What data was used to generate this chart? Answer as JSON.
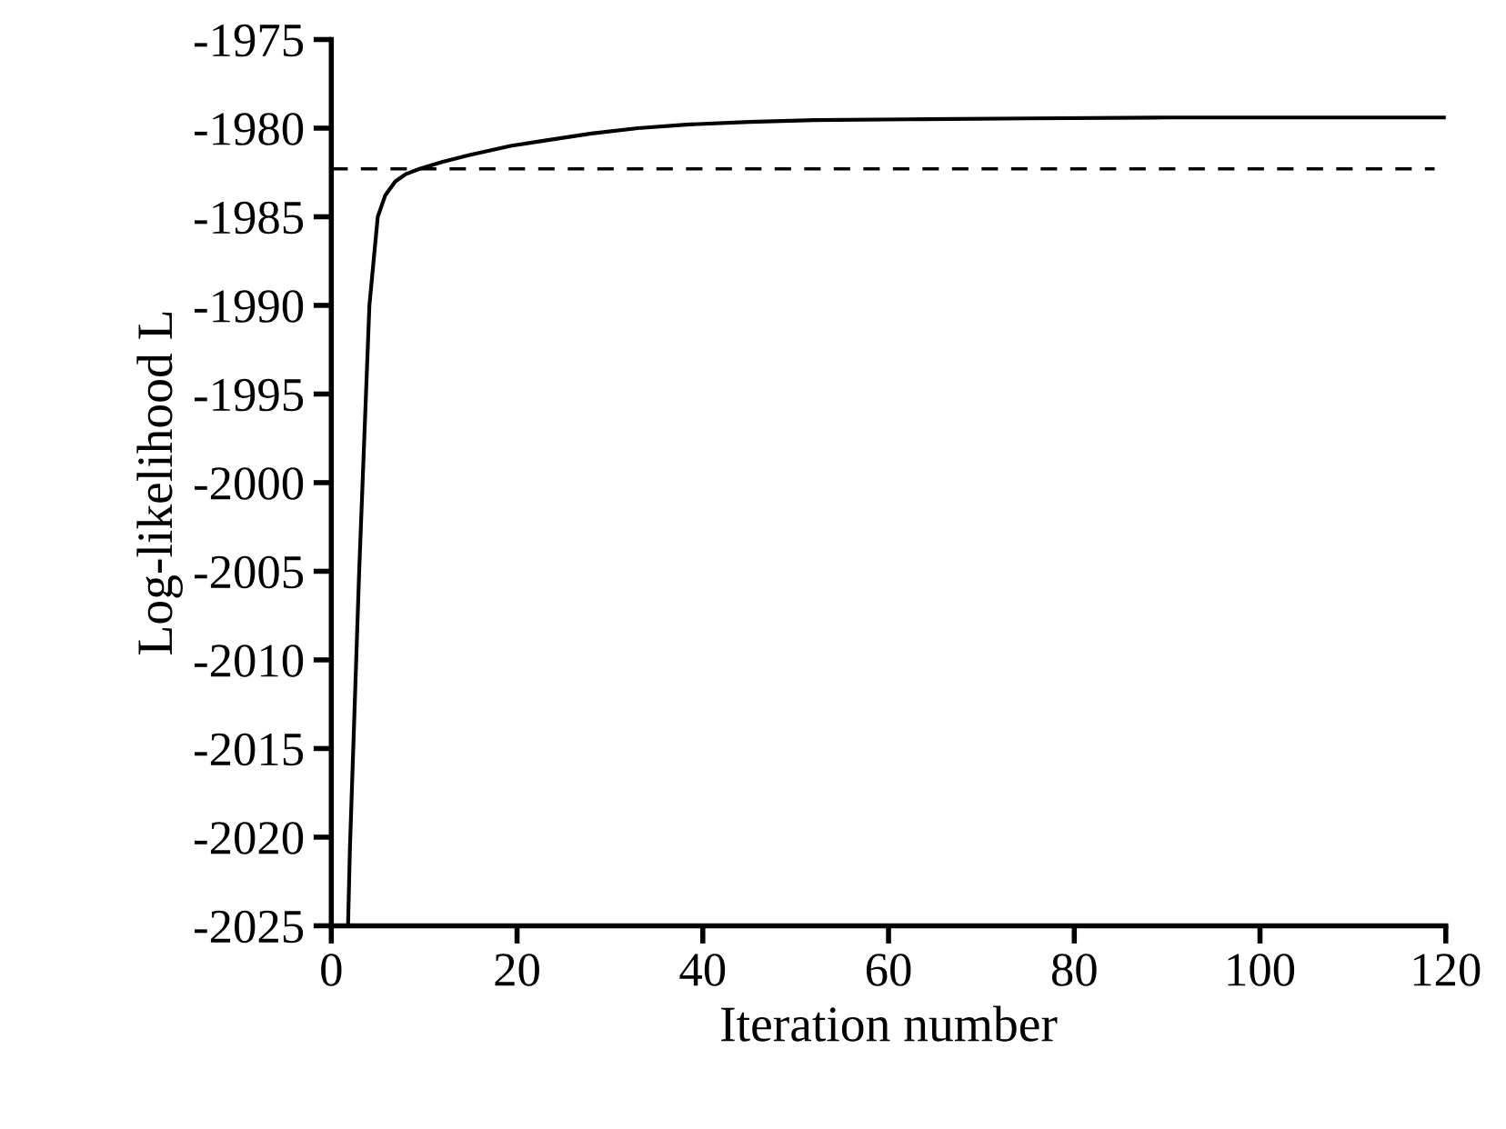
{
  "chart_data": {
    "type": "line",
    "xlabel": "Iteration number",
    "ylabel": "Log-likelihood L",
    "series": [
      {
        "color": "#000000",
        "x": [
          1.8,
          2.0,
          3.0,
          4.1,
          5.0,
          5.8,
          6.9,
          8.0,
          9.5,
          12,
          15,
          19.3,
          23,
          28,
          33,
          38.2,
          45,
          52,
          62,
          75,
          90,
          105,
          120
        ],
        "values": [
          -2025,
          -2020.7,
          -2005,
          -1990,
          -1985,
          -1983.8,
          -1983.0,
          -1982.6,
          -1982.3,
          -1981.9,
          -1981.5,
          -1981.0,
          -1980.7,
          -1980.3,
          -1980.0,
          -1979.8,
          -1979.65,
          -1979.55,
          -1979.5,
          -1979.45,
          -1979.4,
          -1979.4,
          -1979.4
        ]
      }
    ],
    "ref_lines": [
      {
        "axis": "y",
        "value": -1982.3,
        "color": "#000000",
        "line_style": "dashed"
      }
    ],
    "xlim": [
      0,
      120
    ],
    "xticks": [
      0,
      20,
      40,
      60,
      80,
      100,
      120
    ],
    "ylim": [
      -2025,
      -1975
    ],
    "yticks": [
      -2025,
      -2020,
      -2015,
      -2010,
      -2005,
      -2000,
      -1995,
      -1990,
      -1985,
      -1980,
      -1975
    ],
    "grid": false,
    "legend": false,
    "marker": "none",
    "line_style": "solid"
  }
}
